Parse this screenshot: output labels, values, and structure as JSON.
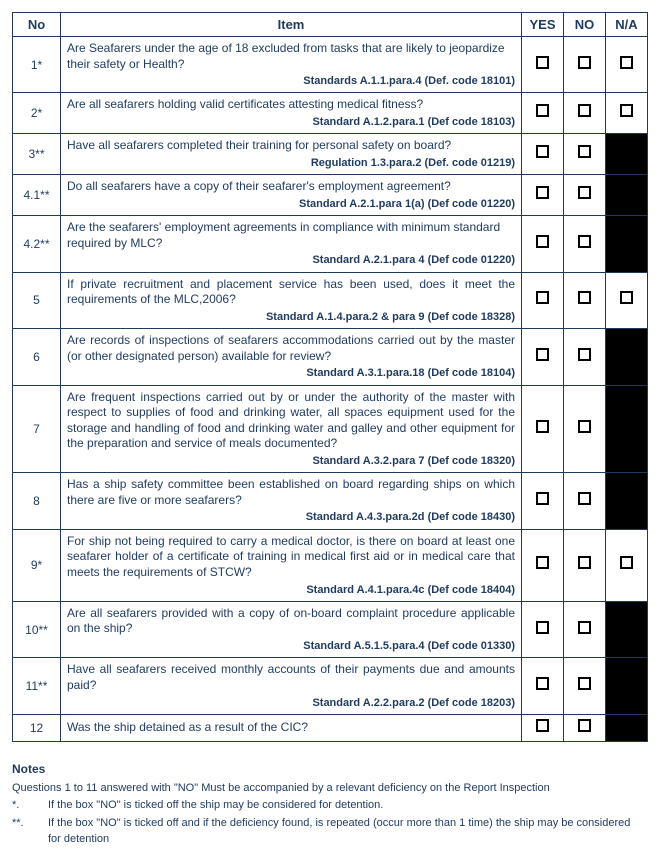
{
  "colors": {
    "text": "#1f3a5f",
    "border": "#1f3a5f",
    "black_cell": "#000000",
    "background": "#ffffff"
  },
  "headers": {
    "no": "No",
    "item": "Item",
    "yes": "YES",
    "no2": "NO",
    "na": "N/A"
  },
  "rows": [
    {
      "no": "1*",
      "text": "Are Seafarers under the age of 18 excluded from tasks that are likely to jeopardize their safety or Health?",
      "justify": false,
      "standard": "Standards A.1.1.para.4 (Def. code 18101)",
      "yes": "check",
      "no2": "check",
      "na": "check"
    },
    {
      "no": "2*",
      "text": "Are all seafarers holding valid certificates attesting medical fitness?",
      "justify": false,
      "standard": "Standard A.1.2.para.1 (Def code 18103)",
      "yes": "check",
      "no2": "check",
      "na": "check"
    },
    {
      "no": "3**",
      "text": "Have all seafarers completed their training for personal safety on board?",
      "justify": false,
      "standard": "Regulation 1.3.para.2 (Def. code 01219)",
      "yes": "check",
      "no2": "check",
      "na": "black"
    },
    {
      "no": "4.1**",
      "text": "Do all seafarers have a copy of their seafarer's employment agreement?",
      "justify": false,
      "standard": "Standard A.2.1.para 1(a) (Def code 01220)",
      "yes": "check",
      "no2": "check",
      "na": "black"
    },
    {
      "no": "4.2**",
      "text": "Are the seafarers' employment agreements in compliance with minimum standard required by MLC?",
      "justify": false,
      "standard": "Standard A.2.1.para 4 (Def code 01220)",
      "yes": "check",
      "no2": "check",
      "na": "black"
    },
    {
      "no": "5",
      "text": "If private recruitment and placement service has been used, does it meet the requirements of the MLC,2006?",
      "justify": true,
      "standard": "Standard A.1.4.para.2 & para 9 (Def code 18328)",
      "yes": "check",
      "no2": "check",
      "na": "check"
    },
    {
      "no": "6",
      "text": "Are records of inspections of seafarers accommodations carried out by the master (or other designated person) available for review?",
      "justify": true,
      "standard": "Standard A.3.1.para.18 (Def code 18104)",
      "yes": "check",
      "no2": "check",
      "na": "black"
    },
    {
      "no": "7",
      "text": "Are frequent inspections carried out by or under the authority of the master with respect to supplies of food and drinking water, all spaces equipment used for the storage and handling of food and drinking water and galley and other equipment for the preparation and service of meals documented?",
      "justify": true,
      "standard": "Standard A.3.2.para 7 (Def code 18320)",
      "yes": "check",
      "no2": "check",
      "na": "black"
    },
    {
      "no": "8",
      "text": "Has a ship safety committee been established on board regarding ships on which there are five or more seafarers?",
      "justify": true,
      "standard": "Standard A.4.3.para.2d (Def code 18430)",
      "yes": "check",
      "no2": "check",
      "na": "black"
    },
    {
      "no": "9*",
      "text": "For ship not being required to carry a medical doctor, is there on board at least one seafarer holder of a certificate of training in medical first aid or in medical care that meets the requirements of STCW?",
      "justify": true,
      "standard": "Standard A.4.1.para.4c (Def code 18404)",
      "yes": "check",
      "no2": "check",
      "na": "check"
    },
    {
      "no": "10**",
      "text": "Are all seafarers provided with a copy of on-board complaint procedure applicable on the ship?",
      "justify": true,
      "standard": "Standard A.5.1.5.para.4 (Def code 01330)",
      "yes": "check",
      "no2": "check",
      "na": "black"
    },
    {
      "no": "11**",
      "text": "Have all seafarers received monthly accounts of their payments due and amounts paid?",
      "justify": true,
      "standard": "Standard A.2.2.para.2 (Def code 18203)",
      "yes": "check",
      "no2": "check",
      "na": "black"
    },
    {
      "no": "12",
      "text": "Was the ship detained as a result of the CIC?",
      "justify": false,
      "standard": "",
      "yes": "check",
      "no2": "check",
      "na": "black"
    }
  ],
  "notes": {
    "title": "Notes",
    "intro": "Questions 1 to 11 answered with \"NO\" Must be accompanied by a relevant deficiency on the Report Inspection",
    "items": [
      {
        "mark": "*.",
        "text": "If the box \"NO\" is ticked off the ship may be considered for detention."
      },
      {
        "mark": "**.",
        "text": "If the box \"NO\" is ticked off and if the deficiency found, is repeated (occur more than 1 time) the ship may be considered for detention"
      }
    ]
  }
}
